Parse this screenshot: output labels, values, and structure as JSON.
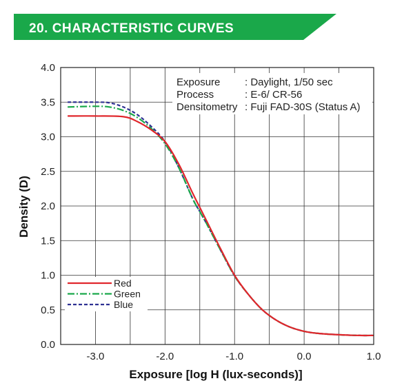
{
  "header": {
    "title": "20.  CHARACTERISTIC  CURVES"
  },
  "colors": {
    "banner": "#1aa84a",
    "red": "#e0262b",
    "green": "#1aa84a",
    "blue": "#2e3192",
    "grid": "#333333"
  },
  "info": {
    "rows": [
      {
        "label": "Exposure",
        "value": ": Daylight, 1/50 sec"
      },
      {
        "label": "Process",
        "value": ": E-6/ CR-56"
      },
      {
        "label": "Densitometry",
        "value": ": Fuji FAD-30S (Status A)"
      }
    ]
  },
  "chart_data": {
    "type": "line",
    "xlabel": "Exposure [log H (lux-seconds)]",
    "ylabel": "Density (D)",
    "xlim": [
      -3.5,
      1.0
    ],
    "ylim": [
      0.0,
      4.0
    ],
    "xticks": [
      -3.0,
      -2.0,
      -1.0,
      0.0,
      1.0
    ],
    "xtick_labels": [
      "-3.0",
      "-2.0",
      "-1.0",
      "0.0",
      "1.0"
    ],
    "yticks": [
      0.0,
      0.5,
      1.0,
      1.5,
      2.0,
      2.5,
      3.0,
      3.5,
      4.0
    ],
    "ytick_labels": [
      "0.0",
      "0.5",
      "1.0",
      "1.5",
      "2.0",
      "2.5",
      "3.0",
      "3.5",
      "4.0"
    ],
    "grid": true,
    "legend_position": "bottom-left",
    "series": [
      {
        "name": "Red",
        "color": "#e0262b",
        "style": "solid",
        "x": [
          -3.4,
          -3.0,
          -2.6,
          -2.4,
          -2.2,
          -2.0,
          -1.8,
          -1.6,
          -1.5,
          -1.4,
          -1.2,
          -1.0,
          -0.8,
          -0.6,
          -0.4,
          -0.2,
          0.0,
          0.2,
          0.5,
          0.8,
          1.0
        ],
        "y": [
          3.3,
          3.3,
          3.29,
          3.22,
          3.1,
          2.93,
          2.6,
          2.18,
          1.98,
          1.78,
          1.38,
          1.0,
          0.72,
          0.5,
          0.35,
          0.25,
          0.19,
          0.16,
          0.14,
          0.13,
          0.13
        ]
      },
      {
        "name": "Green",
        "color": "#1aa84a",
        "style": "dashdot",
        "x": [
          -3.4,
          -3.0,
          -2.8,
          -2.6,
          -2.4,
          -2.2,
          -2.0,
          -1.8,
          -1.6,
          -1.5,
          -1.4,
          -1.2,
          -1.0,
          -0.8,
          -0.6,
          -0.4,
          -0.2,
          0.0,
          0.2,
          0.5,
          0.8,
          1.0
        ],
        "y": [
          3.43,
          3.44,
          3.43,
          3.38,
          3.28,
          3.12,
          2.9,
          2.55,
          2.1,
          1.92,
          1.74,
          1.36,
          0.99,
          0.72,
          0.5,
          0.35,
          0.25,
          0.19,
          0.16,
          0.14,
          0.13,
          0.13
        ]
      },
      {
        "name": "Blue",
        "color": "#2e3192",
        "style": "dashed",
        "x": [
          -3.4,
          -3.0,
          -2.8,
          -2.6,
          -2.4,
          -2.2,
          -2.0,
          -1.8,
          -1.6,
          -1.5,
          -1.4,
          -1.2,
          -1.0,
          -0.8,
          -0.6,
          -0.4,
          -0.2,
          0.0,
          0.2,
          0.5,
          0.8,
          1.0
        ],
        "y": [
          3.5,
          3.5,
          3.49,
          3.43,
          3.32,
          3.15,
          2.93,
          2.55,
          2.1,
          1.92,
          1.74,
          1.36,
          0.99,
          0.72,
          0.5,
          0.35,
          0.25,
          0.19,
          0.16,
          0.14,
          0.13,
          0.13
        ]
      }
    ]
  }
}
